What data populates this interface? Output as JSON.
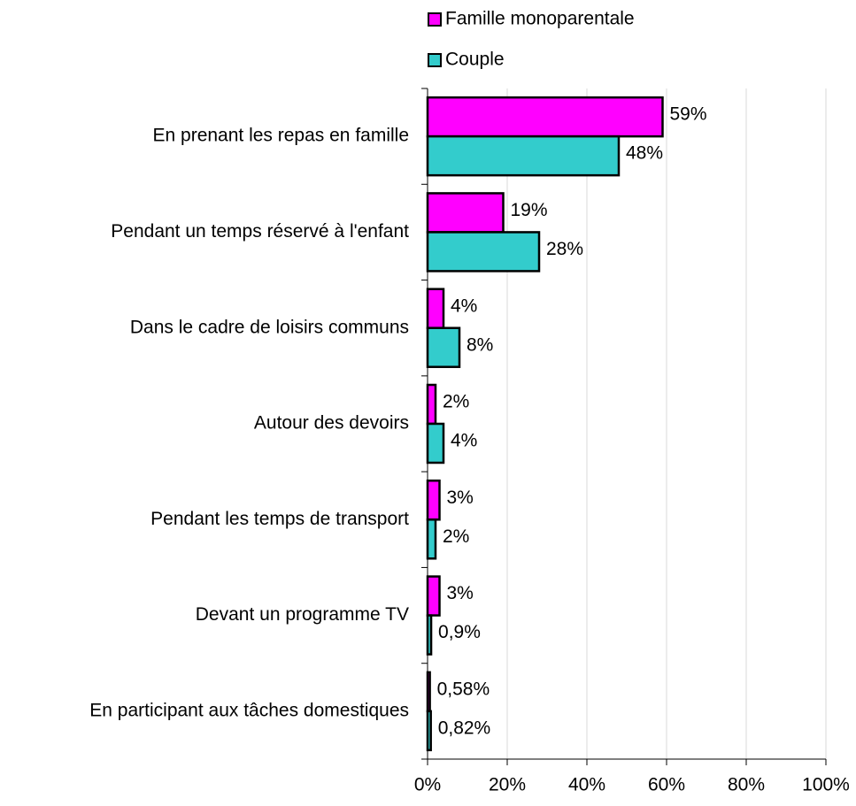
{
  "chart_data": {
    "type": "bar",
    "orientation": "horizontal",
    "categories": [
      "En prenant les repas en famille",
      "Pendant un temps réservé à l'enfant",
      "Dans le cadre de loisirs communs",
      "Autour des devoirs",
      "Pendant les temps de transport",
      "Devant un programme TV",
      "En participant aux tâches domestiques"
    ],
    "series": [
      {
        "name": "Famille monoparentale",
        "color": "#ff00ff",
        "values": [
          59,
          19,
          4,
          2,
          3,
          3,
          0.58
        ],
        "value_labels": [
          "59%",
          "19%",
          "4%",
          "2%",
          "3%",
          "3%",
          "0,58%"
        ]
      },
      {
        "name": "Couple",
        "color": "#33cccc",
        "values": [
          48,
          28,
          8,
          4,
          2,
          0.9,
          0.82
        ],
        "value_labels": [
          "48%",
          "28%",
          "8%",
          "4%",
          "2%",
          "0,9%",
          "0,82%"
        ]
      }
    ],
    "xlim": [
      0,
      100
    ],
    "xticks": [
      {
        "value": 0,
        "label": "0%"
      },
      {
        "value": 20,
        "label": "20%"
      },
      {
        "value": 40,
        "label": "40%"
      },
      {
        "value": 60,
        "label": "60%"
      },
      {
        "value": 80,
        "label": "80%"
      },
      {
        "value": 100,
        "label": "100%"
      }
    ],
    "grid": true,
    "legend": "top"
  }
}
